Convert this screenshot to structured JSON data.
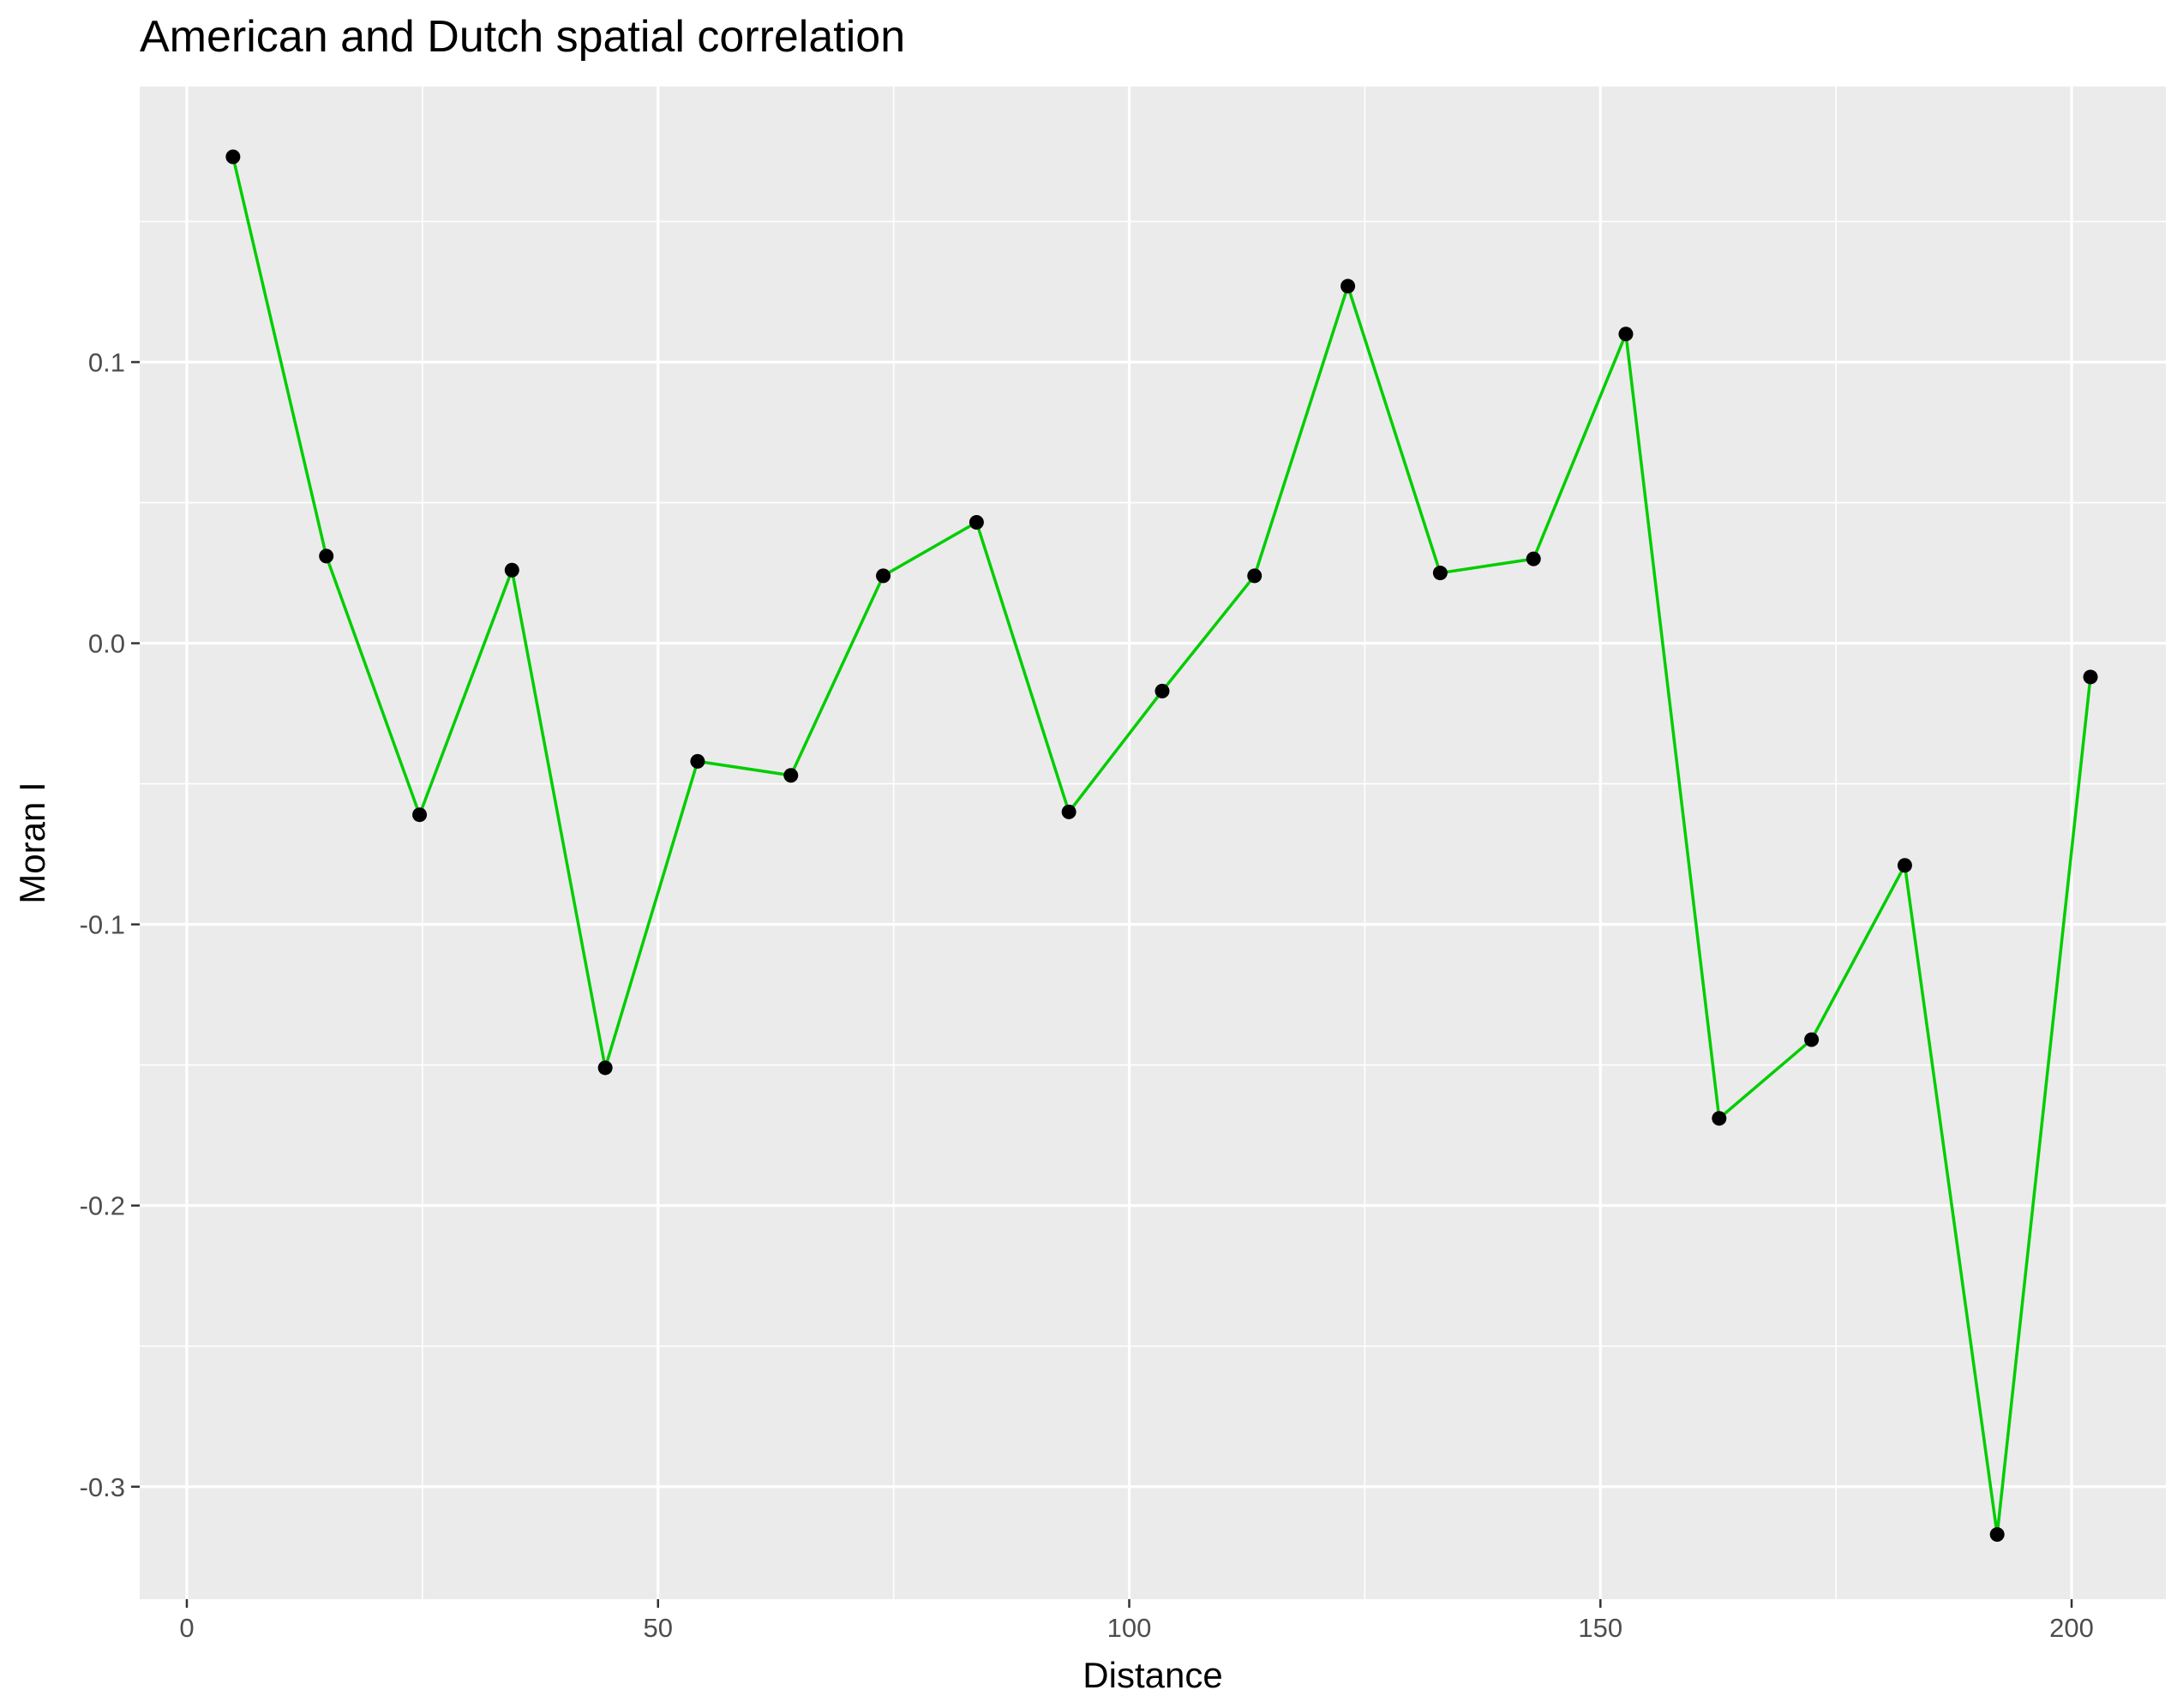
{
  "chart_data": {
    "type": "line",
    "title": "American and Dutch spatial correlation",
    "xlabel": "Distance",
    "ylabel": "Moran I",
    "xlim": [
      -5,
      210
    ],
    "ylim": [
      -0.34,
      0.198
    ],
    "x_ticks": [
      0,
      50,
      100,
      150,
      200
    ],
    "x_tick_labels": [
      "0",
      "50",
      "100",
      "150",
      "200"
    ],
    "y_ticks": [
      -0.3,
      -0.2,
      -0.1,
      0.0,
      0.1
    ],
    "y_tick_labels": [
      "-0.3",
      "-0.2",
      "-0.1",
      "0.0",
      "0.1"
    ],
    "grid": true,
    "panel_background": "#ebebeb",
    "line_color": "#00cd00",
    "point_color": "#000000",
    "series": [
      {
        "x": [
          4.9,
          14.8,
          24.7,
          34.5,
          44.4,
          54.2,
          64.1,
          73.9,
          83.8,
          93.6,
          103.5,
          113.3,
          123.2,
          133.0,
          142.9,
          152.7,
          162.6,
          172.4,
          182.3,
          192.1,
          202.0
        ],
        "y": [
          0.173,
          0.031,
          -0.061,
          0.026,
          -0.151,
          -0.042,
          -0.047,
          0.024,
          0.043,
          -0.06,
          -0.017,
          0.024,
          0.127,
          0.025,
          0.03,
          0.11,
          -0.169,
          -0.141,
          -0.079,
          -0.317,
          -0.012
        ]
      }
    ]
  }
}
